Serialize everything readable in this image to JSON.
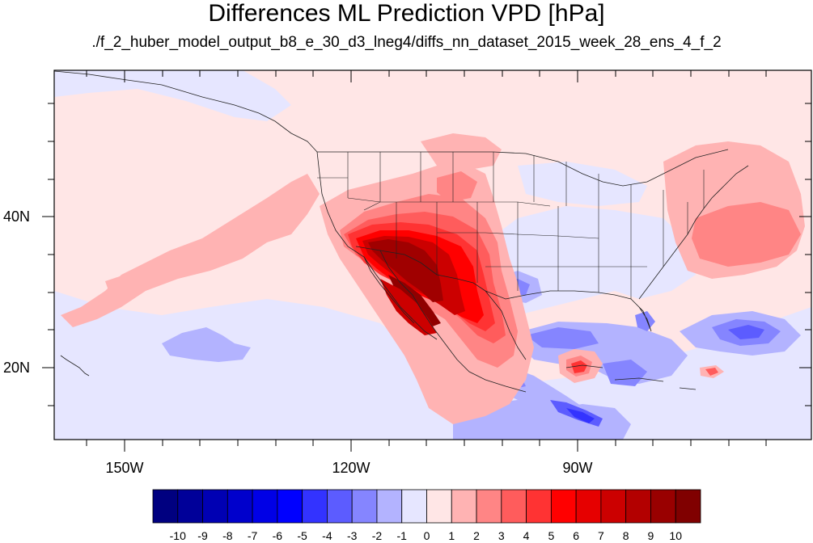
{
  "title": "Differences ML Prediction VPD [hPa]",
  "subtitle": "./f_2_huber_model_output_b8_e_30_d3_lneg4/diffs_nn_dataset_2015_week_28_ens_4_f_2",
  "lat_labels": [
    "40N",
    "20N"
  ],
  "lon_labels": [
    "150W",
    "120W",
    "90W"
  ],
  "colorbar": {
    "labels": [
      "-10",
      "-9",
      "-8",
      "-7",
      "-6",
      "-5",
      "-4",
      "-3",
      "-2",
      "-1",
      "0",
      "1",
      "2",
      "3",
      "4",
      "5",
      "6",
      "7",
      "8",
      "9",
      "10"
    ],
    "colors": [
      "#000080",
      "#000099",
      "#0000b3",
      "#0000cc",
      "#0000e6",
      "#0000ff",
      "#3333ff",
      "#5c5cff",
      "#8585ff",
      "#b3b3ff",
      "#e6e6ff",
      "#ffe6e6",
      "#ffb3b3",
      "#ff8585",
      "#ff5c5c",
      "#ff3333",
      "#ff0000",
      "#e60000",
      "#cc0000",
      "#b30000",
      "#990000",
      "#800000"
    ]
  }
}
